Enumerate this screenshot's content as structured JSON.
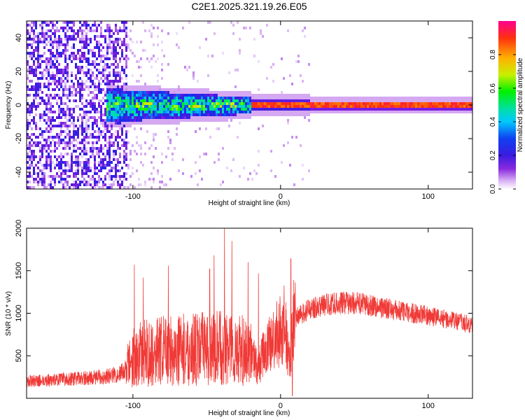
{
  "figure_title": "C2E1.2025.321.19.26.E05",
  "colors": {
    "line": "#f03a37",
    "frame": "#000000",
    "colormap": [
      "#ffffff",
      "#cf9cf0",
      "#7a1ce0",
      "#3a1ce0",
      "#1030f0",
      "#00c8ff",
      "#00e0a0",
      "#00f000",
      "#c8f000",
      "#ffb000",
      "#ff3010",
      "#ff0090"
    ]
  },
  "chart_data": [
    {
      "type": "heatmap",
      "title": "",
      "xlabel": "Height of straight line (km)",
      "ylabel": "Frequency (Hz)",
      "xlim": [
        -172,
        130
      ],
      "ylim": [
        -50,
        50
      ],
      "xticks": [
        -100,
        0,
        100
      ],
      "xtick_labels": [
        "-100",
        "0",
        "100"
      ],
      "yticks": [
        -40,
        -20,
        0,
        20,
        40
      ],
      "ytick_labels": [
        "-40",
        "-20",
        "0",
        "20",
        "40"
      ],
      "colorbar": {
        "label": "Normalized spectral amplitude",
        "range": [
          0,
          1
        ],
        "ticks": [
          0.0,
          0.2,
          0.4,
          0.6,
          0.8
        ],
        "tick_labels": [
          "0.0",
          "0.2",
          "0.4",
          "0.6",
          "0.8"
        ]
      },
      "regions": [
        {
          "name": "broadband noise",
          "x_range": [
            -172,
            -105
          ],
          "freq_range": [
            -50,
            50
          ],
          "amplitude": [
            0.1,
            0.35
          ]
        },
        {
          "name": "sparse noise",
          "x_range": [
            -105,
            20
          ],
          "freq_range": [
            -50,
            50
          ],
          "amplitude": [
            0.02,
            0.15
          ]
        },
        {
          "name": "wide signal band",
          "x_range": [
            -118,
            -20
          ],
          "center_hz": 0,
          "half_width_hz": [
            10,
            4
          ],
          "amplitude": [
            0.3,
            0.9
          ]
        },
        {
          "name": "narrow signal band",
          "x_range": [
            -20,
            130
          ],
          "center_hz": 0,
          "half_width_hz": [
            3,
            1.5
          ],
          "amplitude": [
            0.8,
            1.0
          ]
        }
      ]
    },
    {
      "type": "line",
      "title": "",
      "xlabel": "Height of straight line (km)",
      "ylabel": "SNR (10 * v/v)",
      "xlim": [
        -172,
        130
      ],
      "ylim": [
        0,
        2000
      ],
      "xticks": [
        -100,
        0,
        100
      ],
      "xtick_labels": [
        "-100",
        "0",
        "100"
      ],
      "yticks": [
        500,
        1000,
        1500,
        2000
      ],
      "ytick_labels": [
        "500",
        "1000",
        "1500",
        "2000"
      ],
      "series": [
        {
          "name": "SNR",
          "color": "#f03a37",
          "x": [
            -172,
            -160,
            -150,
            -140,
            -130,
            -120,
            -110,
            -105,
            -100,
            -95,
            -90,
            -85,
            -80,
            -75,
            -70,
            -65,
            -60,
            -55,
            -50,
            -45,
            -40,
            -35,
            -30,
            -25,
            -20,
            -17,
            -15,
            -12,
            -10,
            -5,
            0,
            3,
            5,
            7,
            8,
            10,
            15,
            20,
            25,
            30,
            40,
            50,
            60,
            70,
            80,
            90,
            100,
            110,
            120,
            130
          ],
          "values": [
            200,
            210,
            220,
            230,
            240,
            255,
            280,
            340,
            480,
            520,
            540,
            540,
            560,
            560,
            560,
            570,
            570,
            580,
            590,
            580,
            600,
            590,
            570,
            560,
            520,
            420,
            330,
            520,
            560,
            680,
            800,
            870,
            500,
            350,
            900,
            940,
            1000,
            1050,
            1080,
            1100,
            1120,
            1120,
            1100,
            1060,
            1030,
            1000,
            970,
            940,
            900,
            860
          ],
          "peaks": [
            {
              "x": -99,
              "y": 1570
            },
            {
              "x": -93,
              "y": 1420
            },
            {
              "x": -76,
              "y": 1560
            },
            {
              "x": -48,
              "y": 1520
            },
            {
              "x": -45,
              "y": 1680
            },
            {
              "x": -38,
              "y": 2030
            },
            {
              "x": -33,
              "y": 1850
            },
            {
              "x": -22,
              "y": 1600
            },
            {
              "x": -15,
              "y": 1470
            },
            {
              "x": 7,
              "y": 1640
            },
            {
              "x": 8,
              "y": 30
            }
          ]
        }
      ]
    }
  ]
}
